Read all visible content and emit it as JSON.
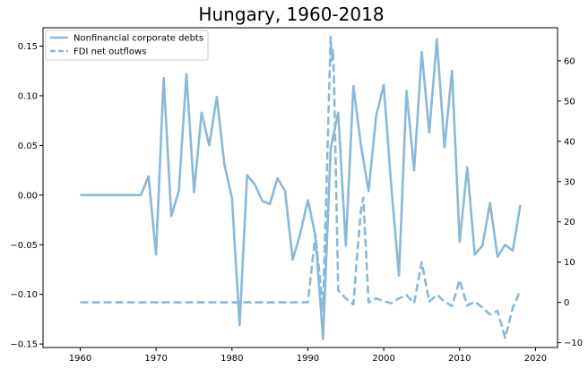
{
  "chart_data": {
    "type": "line",
    "title": "Hungary, 1960-2018",
    "xlim": [
      1955.1,
      2022.9
    ],
    "x_ticks": [
      1960,
      1970,
      1980,
      1990,
      2000,
      2010,
      2020
    ],
    "ylim_left": [
      -0.1535,
      0.1685
    ],
    "y_ticks_left": [
      -0.15,
      -0.1,
      -0.05,
      0.0,
      0.05,
      0.1,
      0.15
    ],
    "y_ticks_left_labels": [
      "−0.15",
      "−0.10",
      "−0.05",
      "0.00",
      "0.05",
      "0.10",
      "0.15"
    ],
    "ylim_right": [
      -11.2,
      68.2
    ],
    "y_ticks_right": [
      -10,
      0,
      10,
      20,
      30,
      40,
      50,
      60
    ],
    "y_ticks_right_labels": [
      "−10",
      "0",
      "10",
      "20",
      "30",
      "40",
      "50",
      "60"
    ],
    "color": "#8ab8d9",
    "legend_position": "upper-left",
    "series": [
      {
        "name": "Nonfinancial corporate debts",
        "axis": "left",
        "style": "solid",
        "x": [
          1960,
          1961,
          1962,
          1963,
          1964,
          1965,
          1966,
          1967,
          1968,
          1969,
          1970,
          1971,
          1972,
          1973,
          1974,
          1975,
          1976,
          1977,
          1978,
          1979,
          1980,
          1981,
          1982,
          1983,
          1984,
          1985,
          1986,
          1987,
          1988,
          1989,
          1990,
          1991,
          1992,
          1993,
          1994,
          1995,
          1996,
          1997,
          1998,
          1999,
          2000,
          2001,
          2002,
          2003,
          2004,
          2005,
          2006,
          2007,
          2008,
          2009,
          2010,
          2011,
          2012,
          2013,
          2014,
          2015,
          2016,
          2017,
          2018
        ],
        "y": [
          0.0,
          0.0,
          0.0,
          0.0,
          0.0,
          0.0,
          0.0,
          0.0,
          0.0,
          0.019,
          -0.06,
          0.118,
          -0.021,
          0.004,
          0.122,
          0.003,
          0.083,
          0.05,
          0.099,
          0.031,
          -0.003,
          -0.131,
          0.02,
          0.011,
          -0.006,
          -0.009,
          0.017,
          0.004,
          -0.065,
          -0.039,
          -0.005,
          -0.041,
          -0.145,
          0.047,
          0.083,
          -0.051,
          0.11,
          0.05,
          0.004,
          0.08,
          0.111,
          0.008,
          -0.081,
          0.105,
          0.025,
          0.144,
          0.063,
          0.157,
          0.048,
          0.125,
          -0.047,
          0.028,
          -0.06,
          -0.051,
          -0.008,
          -0.062,
          -0.05,
          -0.056,
          -0.01
        ]
      },
      {
        "name": "FDI net outflows",
        "axis": "right",
        "style": "dashed",
        "x": [
          1960,
          1961,
          1962,
          1963,
          1964,
          1965,
          1966,
          1967,
          1968,
          1969,
          1970,
          1971,
          1972,
          1973,
          1974,
          1975,
          1976,
          1977,
          1978,
          1979,
          1980,
          1981,
          1982,
          1983,
          1984,
          1985,
          1986,
          1987,
          1988,
          1989,
          1990,
          1991,
          1992,
          1993,
          1993.15,
          1993.3,
          1993.45,
          1994,
          1995,
          1996,
          1996.5,
          1997,
          1997.3,
          1998,
          1999,
          2000,
          2001,
          2002,
          2003,
          2004,
          2005,
          2006,
          2007,
          2008,
          2009,
          2010,
          2011,
          2012,
          2013,
          2014,
          2015,
          2016,
          2017,
          2018
        ],
        "y": [
          0,
          0,
          0,
          0,
          0,
          0,
          0,
          0,
          0,
          0,
          0,
          0,
          0,
          0,
          0,
          0,
          0,
          0,
          0,
          0,
          0,
          0,
          0,
          0,
          0,
          0,
          0,
          0,
          0,
          0,
          0,
          17,
          -2,
          66,
          60,
          63,
          55,
          3,
          1,
          -0.5,
          12,
          23,
          26,
          0,
          1,
          0.3,
          -0.2,
          1,
          1.8,
          -0.2,
          10,
          0.2,
          1.9,
          0.2,
          -0.9,
          5.5,
          -0.8,
          0.2,
          -1.3,
          -3,
          -2.1,
          -8.8,
          -1.3,
          3
        ]
      }
    ]
  }
}
